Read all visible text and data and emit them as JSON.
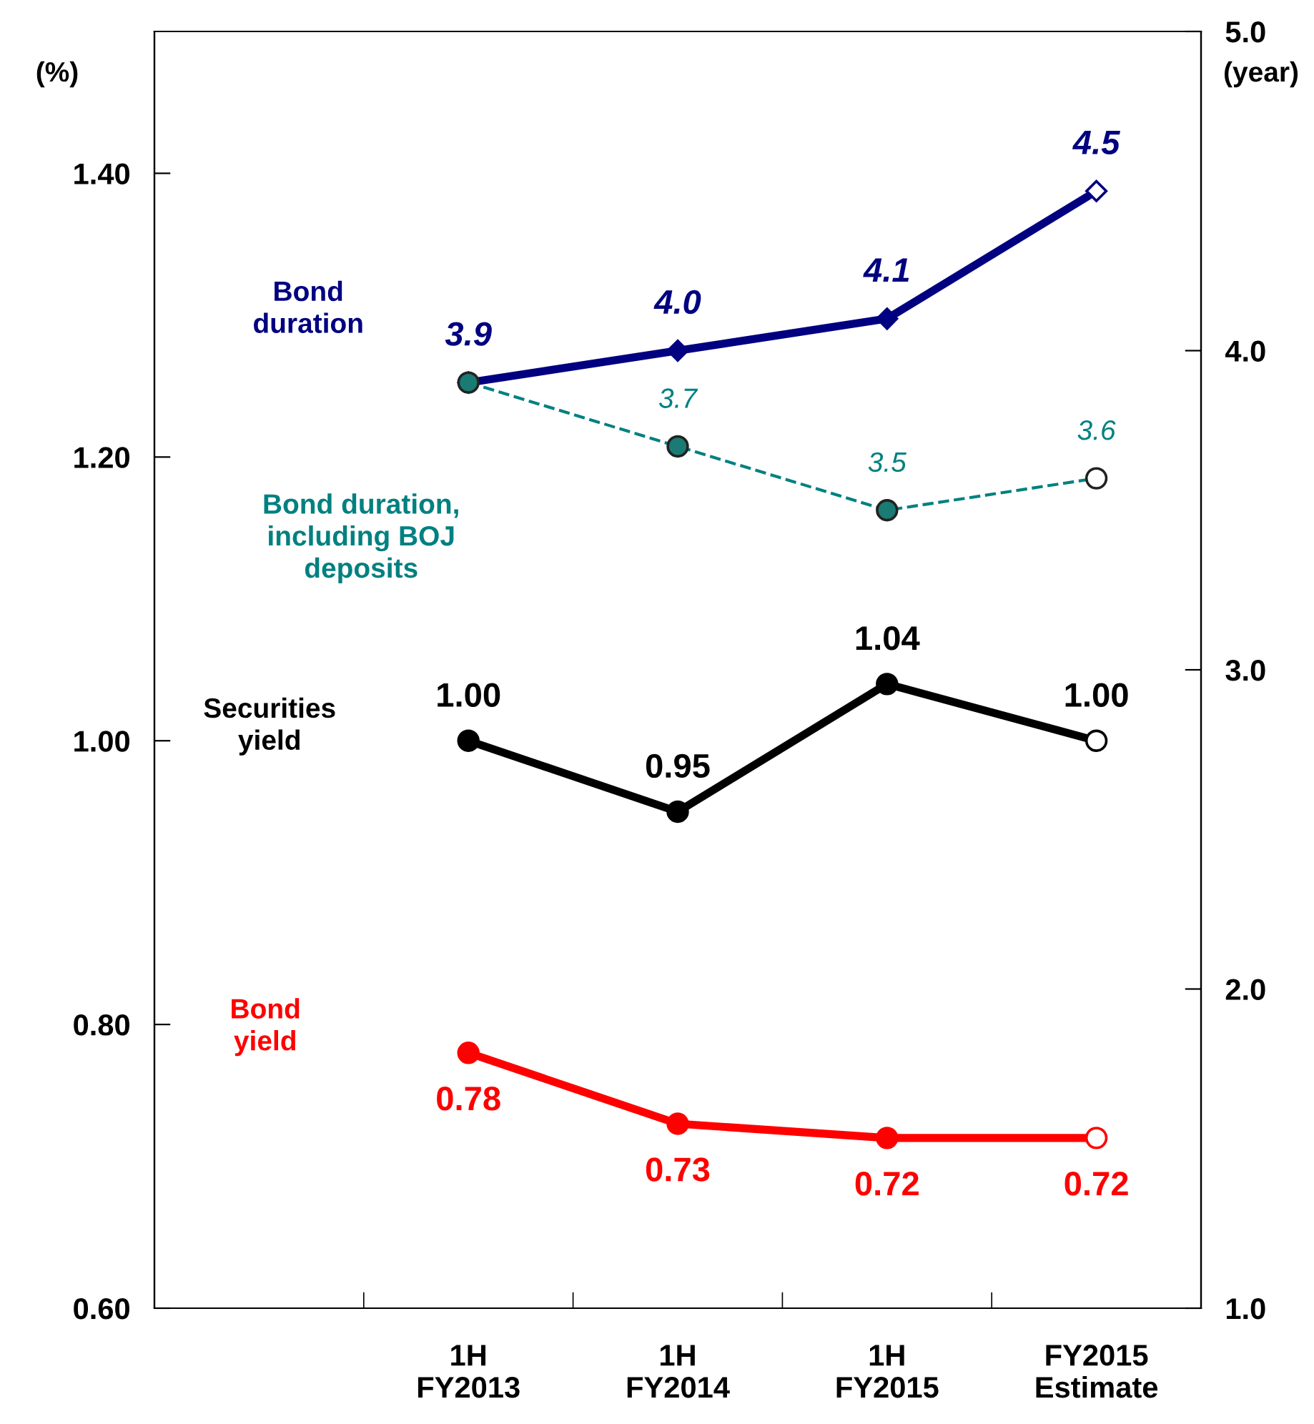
{
  "chart_data": {
    "type": "line",
    "categories": [
      null,
      "1H\nFY2013",
      "1H\nFY2014",
      "1H\nFY2015",
      "FY2015\nEstimate"
    ],
    "ylabel": "(%)",
    "y2label": "(year)",
    "ylim": [
      0.6,
      1.5
    ],
    "yticks": [
      {
        "value": 0.6,
        "label": "0.60"
      },
      {
        "value": 0.8,
        "label": "0.80"
      },
      {
        "value": 1.0,
        "label": "1.00"
      },
      {
        "value": 1.2,
        "label": "1.20"
      },
      {
        "value": 1.4,
        "label": "1.40"
      }
    ],
    "y2lim": [
      1.0,
      5.0
    ],
    "y2ticks": [
      {
        "value": 1.0,
        "label": "1.0"
      },
      {
        "value": 2.0,
        "label": "2.0"
      },
      {
        "value": 3.0,
        "label": "3.0"
      },
      {
        "value": 4.0,
        "label": "4.0"
      },
      {
        "value": 5.0,
        "label": "5.0"
      }
    ],
    "grid": false,
    "legend": false,
    "series": [
      {
        "name": "Bond\nduration",
        "color": "#000080",
        "axis": "y2",
        "marker": "diamond",
        "line_style": "solid",
        "values": [
          null,
          3.9,
          4.0,
          4.1,
          4.5
        ],
        "value_labels": [
          null,
          "3.9",
          "4.0",
          "4.1",
          "4.5"
        ],
        "colors": [
          null,
          "#000080",
          "#000080",
          "#000080",
          "#ffffff"
        ]
      },
      {
        "name": "Bond duration,\nincluding BOJ\ndeposits",
        "color": "#008080",
        "axis": "y2",
        "marker": "circle",
        "line_style": "dashed",
        "values": [
          null,
          3.9,
          3.7,
          3.5,
          3.6
        ],
        "value_labels": [
          null,
          null,
          "3.7",
          "3.5",
          "3.6"
        ],
        "colors": [
          null,
          "#1a7a74",
          "#1a7a74",
          "#1a7a74",
          "#ffffff"
        ]
      },
      {
        "name": "Securities\nyield",
        "color": "#000000",
        "marker": "circle",
        "line_style": "solid",
        "values": [
          null,
          1.0,
          0.95,
          1.04,
          1.0
        ],
        "value_labels": [
          null,
          "1.00",
          "0.95",
          "1.04",
          "1.00"
        ],
        "colors": [
          null,
          "#000000",
          "#000000",
          "#000000",
          "#ffffff"
        ]
      },
      {
        "name": "Bond\nyield",
        "color": "#ff0000",
        "marker": "circle",
        "line_style": "solid",
        "values": [
          null,
          0.78,
          0.73,
          0.72,
          0.72
        ],
        "value_labels": [
          null,
          "0.78",
          "0.73",
          "0.72",
          "0.72"
        ],
        "colors": [
          null,
          "#ff0000",
          "#ff0000",
          "#ff0000",
          "#ffffff"
        ]
      }
    ]
  }
}
